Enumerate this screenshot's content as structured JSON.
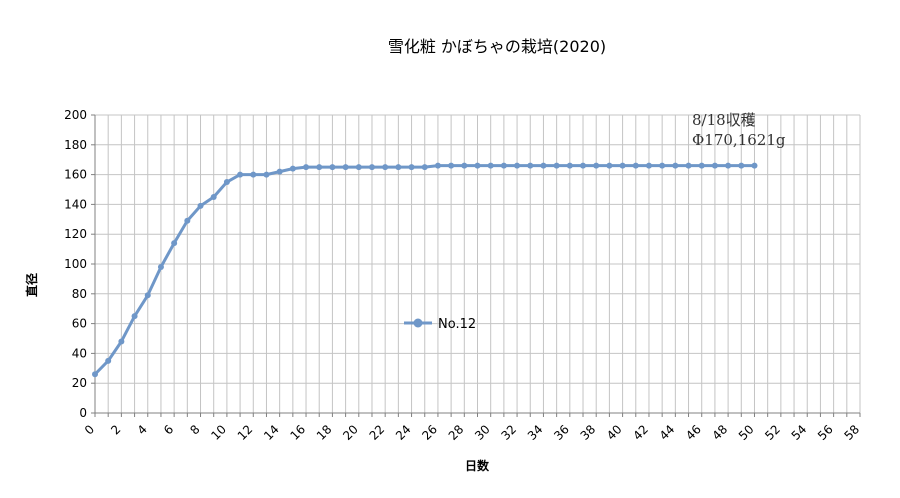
{
  "chart_data": {
    "type": "line",
    "title": "雪化粧 かぼちゃの栽培(2020)",
    "xlabel": "日数",
    "ylabel": "直径",
    "xlim": [
      0,
      58
    ],
    "ylim": [
      0,
      200
    ],
    "xticks": [
      0,
      2,
      4,
      6,
      8,
      10,
      12,
      14,
      16,
      18,
      20,
      22,
      24,
      26,
      28,
      30,
      32,
      34,
      36,
      38,
      40,
      42,
      44,
      46,
      48,
      50,
      52,
      54,
      56,
      58
    ],
    "yticks": [
      0,
      20,
      40,
      60,
      80,
      100,
      120,
      140,
      160,
      180,
      200
    ],
    "grid": true,
    "legend_position": "center",
    "series_color": "#6f97c8",
    "series": [
      {
        "name": "No.12",
        "x": [
          0,
          1,
          2,
          3,
          4,
          5,
          6,
          7,
          8,
          9,
          10,
          11,
          12,
          13,
          14,
          15,
          16,
          17,
          18,
          19,
          20,
          21,
          22,
          23,
          24,
          25,
          26,
          27,
          28,
          29,
          30,
          31,
          32,
          33,
          34,
          35,
          36,
          37,
          38,
          39,
          40,
          41,
          42,
          43,
          44,
          45,
          46,
          47,
          48,
          49,
          50
        ],
        "y": [
          26,
          35,
          48,
          65,
          79,
          98,
          114,
          129,
          139,
          145,
          155,
          160,
          160,
          160,
          162,
          164,
          165,
          165,
          165,
          165,
          165,
          165,
          165,
          165,
          165,
          165,
          166,
          166,
          166,
          166,
          166,
          166,
          166,
          166,
          166,
          166,
          166,
          166,
          166,
          166,
          166,
          166,
          166,
          166,
          166,
          166,
          166,
          166,
          166,
          166,
          166
        ]
      }
    ],
    "annotations": [
      "8/18収穫",
      "Φ170,1621g"
    ]
  }
}
